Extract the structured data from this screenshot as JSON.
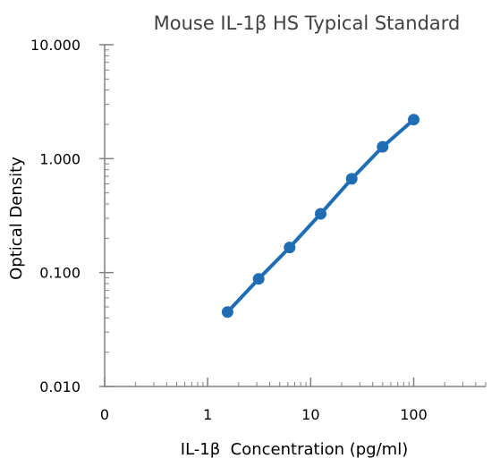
{
  "chart_data": {
    "type": "line",
    "title": "Mouse IL-1β HS Typical Standard",
    "xlabel": "IL-1β  Concentration (pg/ml)",
    "ylabel": "Optical Density",
    "x_scale": "log",
    "y_scale": "log",
    "x_ticks": [
      {
        "value": 0.1,
        "label": "0"
      },
      {
        "value": 1,
        "label": "1"
      },
      {
        "value": 10,
        "label": "10"
      },
      {
        "value": 100,
        "label": "100"
      }
    ],
    "xlim": [
      0.1,
      500
    ],
    "y_ticks": [
      {
        "value": 0.01,
        "label": "0.010"
      },
      {
        "value": 0.1,
        "label": "0.100"
      },
      {
        "value": 1,
        "label": "1.000"
      },
      {
        "value": 10,
        "label": "10.000"
      }
    ],
    "ylim": [
      0.01,
      10
    ],
    "grid": false,
    "legend": "none",
    "series": [
      {
        "color": "#1f6db5",
        "points": [
          {
            "x": 1.56,
            "y": 0.045
          },
          {
            "x": 3.13,
            "y": 0.088
          },
          {
            "x": 6.25,
            "y": 0.166
          },
          {
            "x": 12.5,
            "y": 0.328
          },
          {
            "x": 25,
            "y": 0.665
          },
          {
            "x": 50,
            "y": 1.27
          },
          {
            "x": 100,
            "y": 2.2
          }
        ]
      }
    ]
  }
}
